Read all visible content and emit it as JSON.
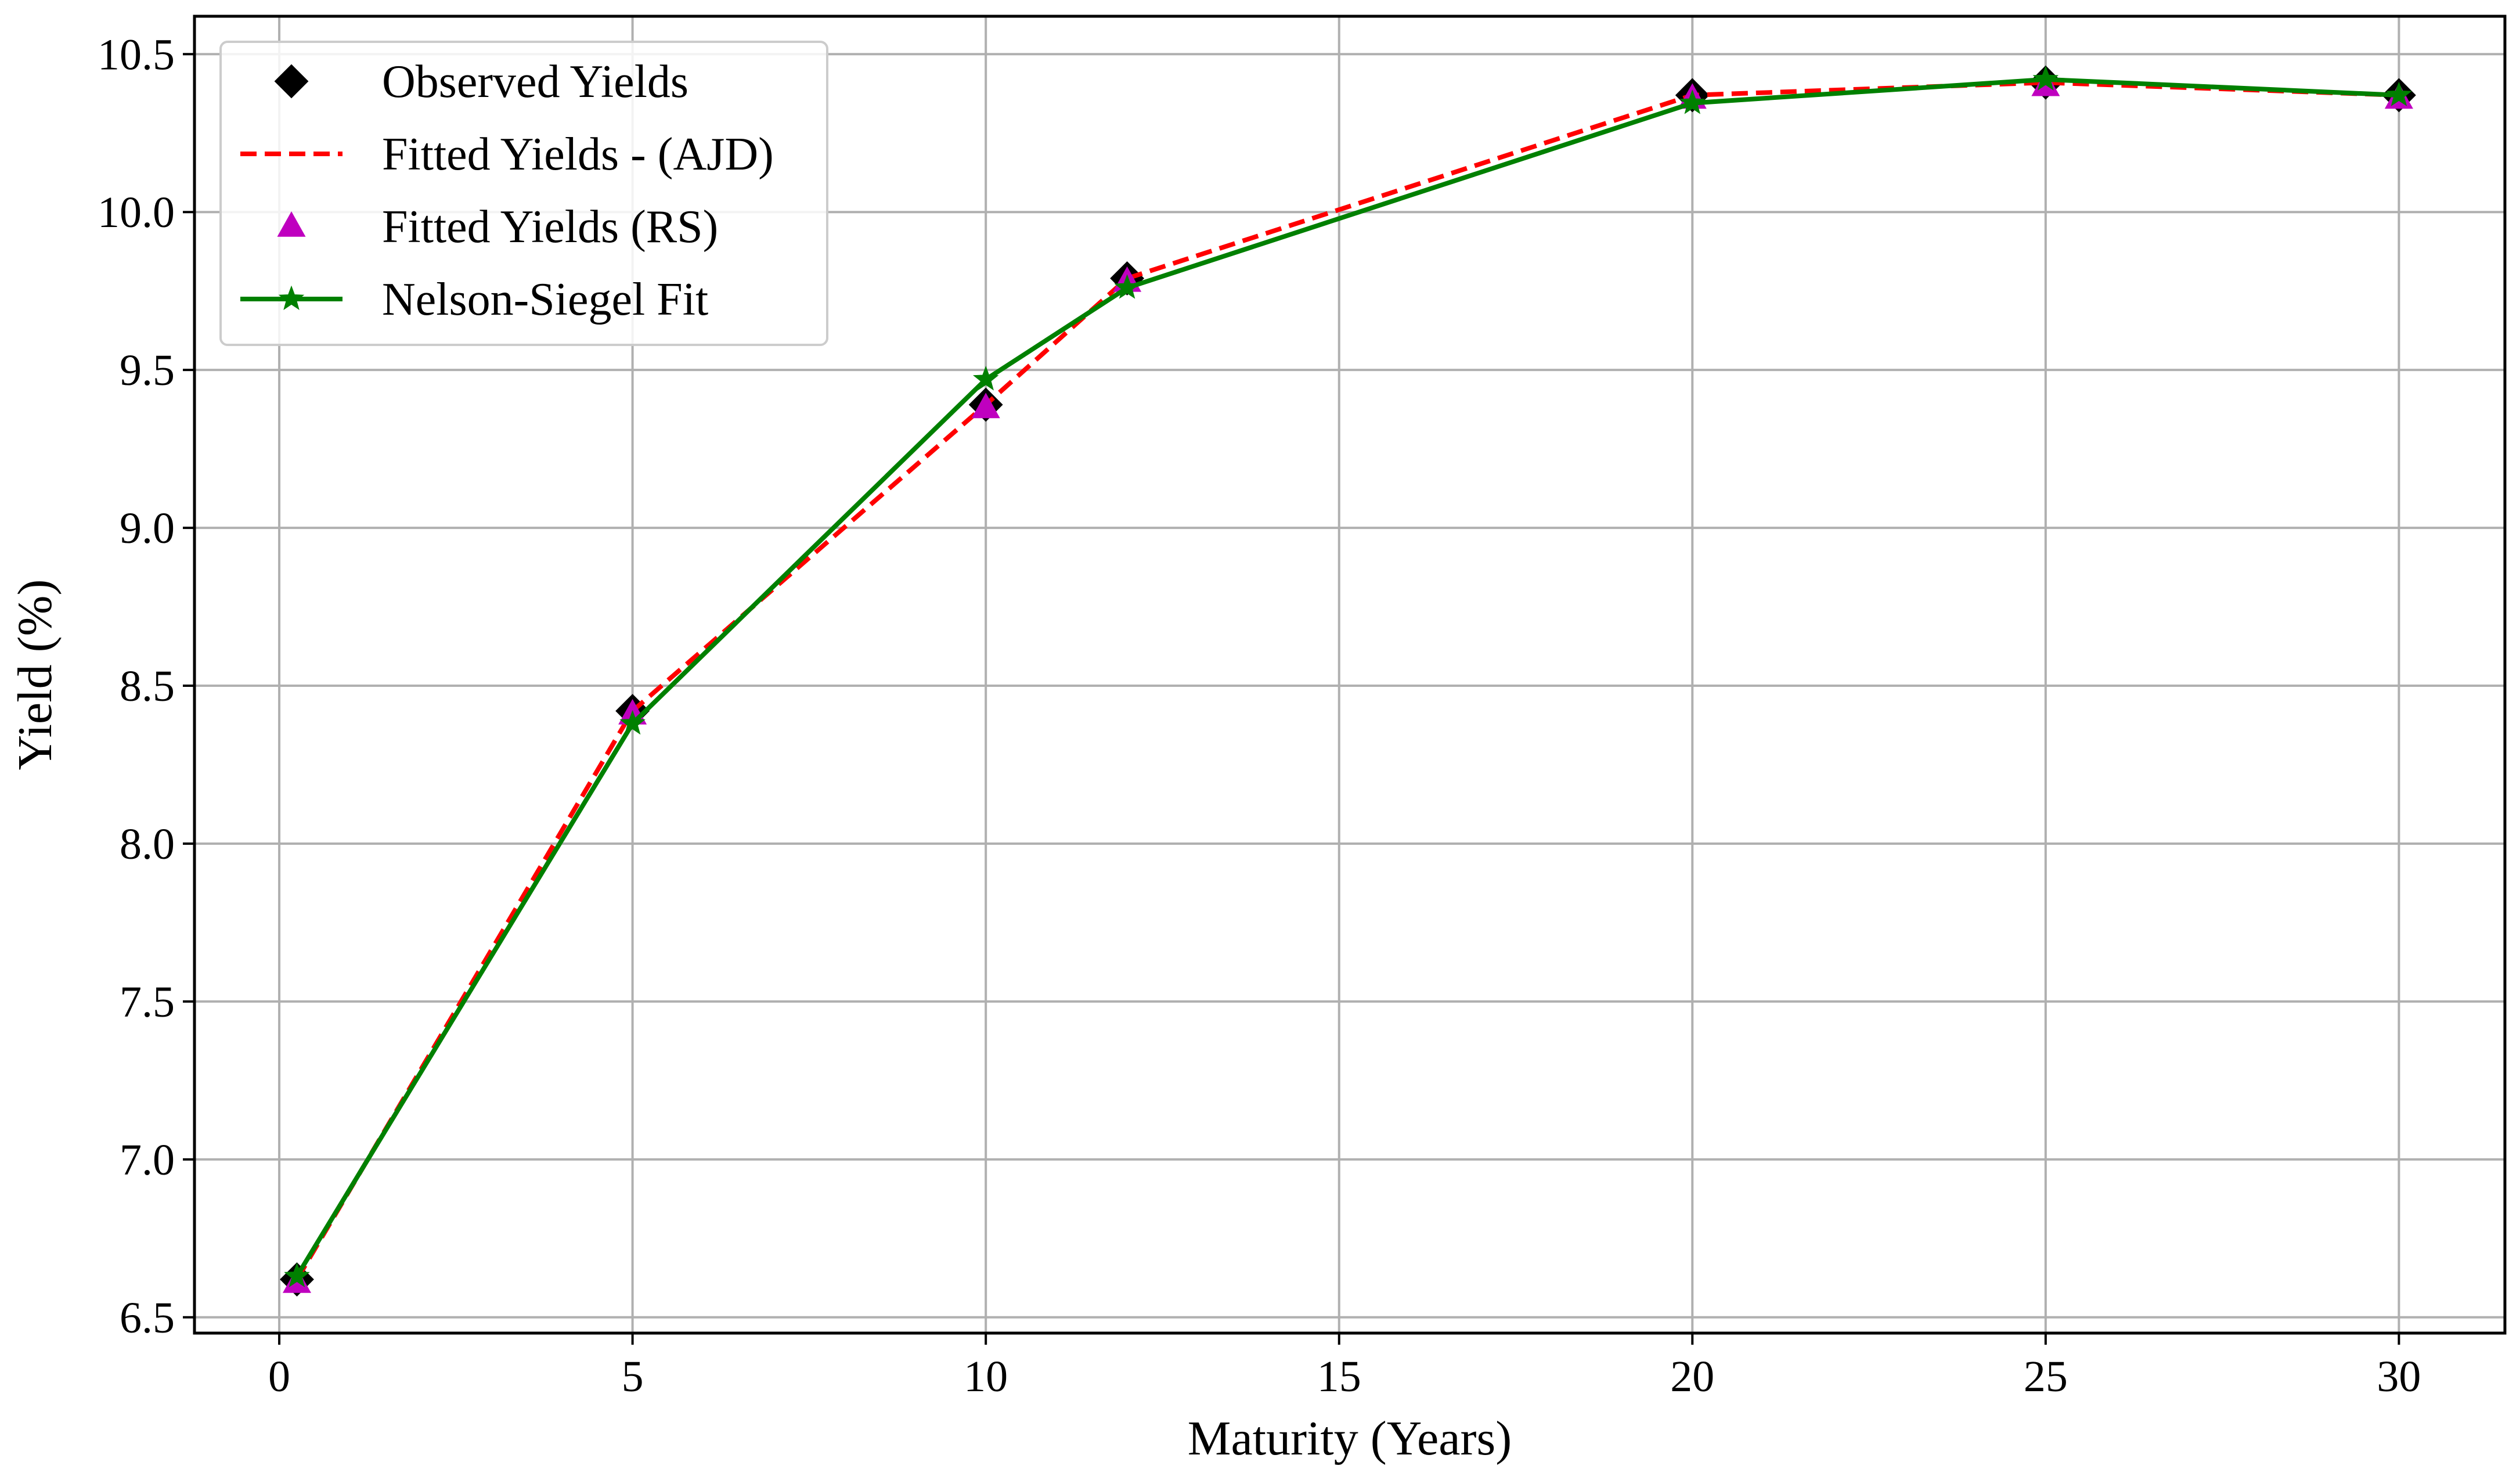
{
  "chart_data": {
    "type": "line",
    "title": "",
    "xlabel": "Maturity (Years)",
    "ylabel": "Yield (%)",
    "xlim": [
      -1.2,
      31.5
    ],
    "ylim": [
      6.45,
      10.62
    ],
    "xticks": [
      0,
      5,
      10,
      15,
      20,
      25,
      30
    ],
    "xtick_labels": [
      "0",
      "5",
      "10",
      "15",
      "20",
      "25",
      "30"
    ],
    "yticks": [
      6.5,
      7.0,
      7.5,
      8.0,
      8.5,
      9.0,
      9.5,
      10.0,
      10.5
    ],
    "ytick_labels": [
      "6.5",
      "7.0",
      "7.5",
      "8.0",
      "8.5",
      "9.0",
      "9.5",
      "10.0",
      "10.5"
    ],
    "grid": true,
    "legend_position": "upper-left",
    "x": [
      0.25,
      5,
      10,
      12,
      20,
      25,
      30
    ],
    "series": [
      {
        "name": "Observed Yields",
        "style": "markers",
        "marker": "diamond",
        "color": "#000000",
        "values": [
          6.62,
          8.42,
          9.39,
          9.79,
          10.37,
          10.41,
          10.37
        ]
      },
      {
        "name": "Fitted Yields - (AJD)",
        "style": "dashed-line",
        "color": "#ff0000",
        "values": [
          6.62,
          8.42,
          9.39,
          9.79,
          10.37,
          10.41,
          10.37
        ]
      },
      {
        "name": "Fitted Yields (RS)",
        "style": "markers",
        "marker": "triangle",
        "color": "#bf00bf",
        "values": [
          6.61,
          8.41,
          9.38,
          9.78,
          10.36,
          10.4,
          10.36
        ]
      },
      {
        "name": "Nelson-Siegel Fit",
        "style": "line-star",
        "marker": "star",
        "color": "#008000",
        "values": [
          6.63,
          8.38,
          9.47,
          9.76,
          10.345,
          10.42,
          10.37
        ]
      }
    ]
  }
}
